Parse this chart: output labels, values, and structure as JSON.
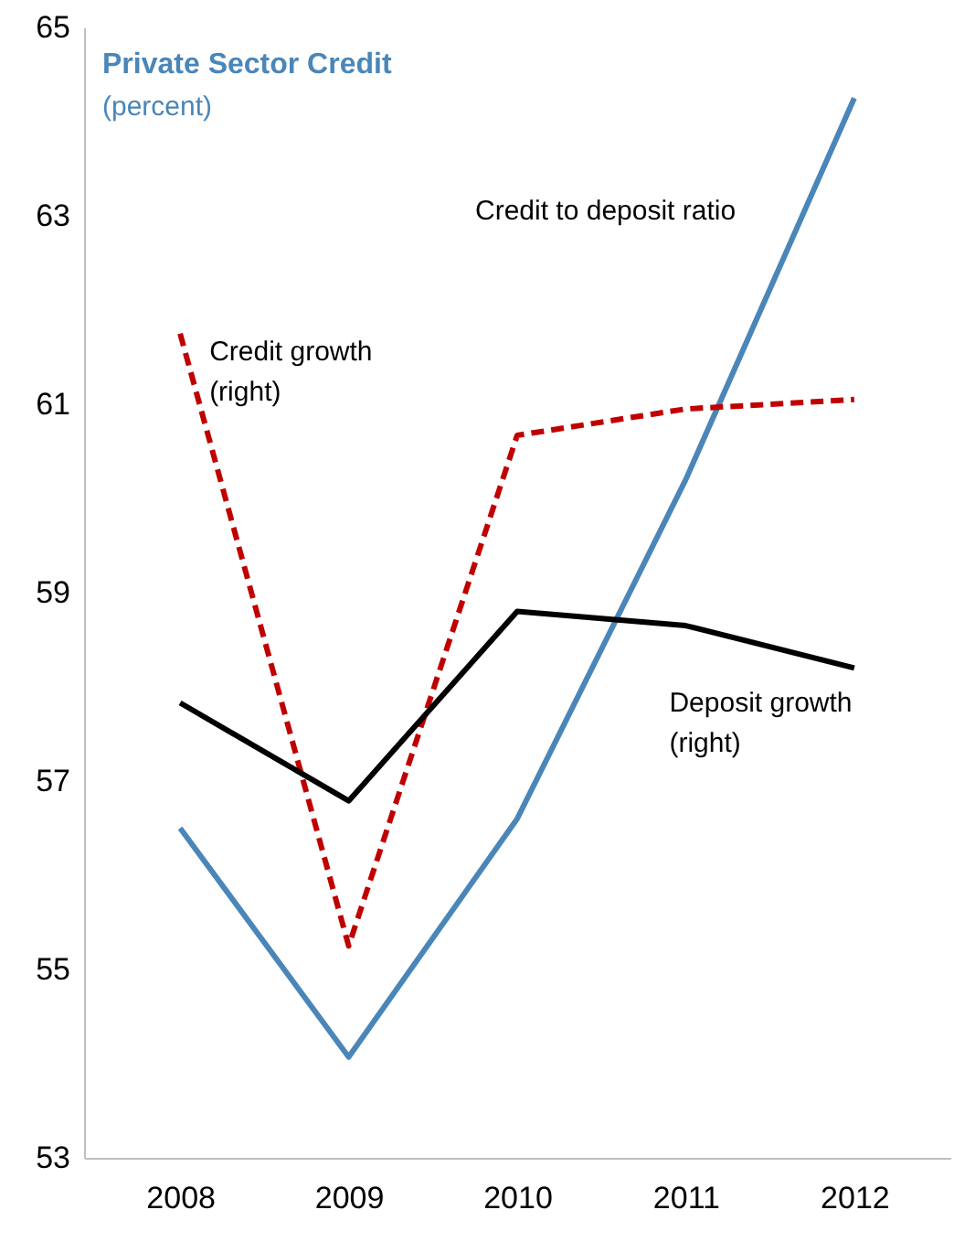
{
  "chart_data": {
    "type": "line",
    "title": "Private Sector Credit",
    "subtitle": "(percent)",
    "categories": [
      "2008",
      "2009",
      "2010",
      "2011",
      "2012"
    ],
    "ylim": [
      53,
      65
    ],
    "yticks": [
      53,
      55,
      57,
      59,
      61,
      63,
      65
    ],
    "grid": false,
    "marker": "none",
    "series": [
      {
        "name": "Credit to deposit ratio",
        "color": "#4a86b8",
        "line_style": "solid",
        "values": [
          56.5,
          54.07,
          56.6,
          60.2,
          64.25
        ]
      },
      {
        "name": "Credit growth (right)",
        "color": "#c00000",
        "line_style": "dashed",
        "values": [
          61.75,
          55.25,
          60.67,
          60.95,
          61.05
        ]
      },
      {
        "name": "Deposit growth (right)",
        "color": "#000000",
        "line_style": "solid",
        "values": [
          57.83,
          56.79,
          58.8,
          58.65,
          58.2
        ]
      }
    ]
  }
}
